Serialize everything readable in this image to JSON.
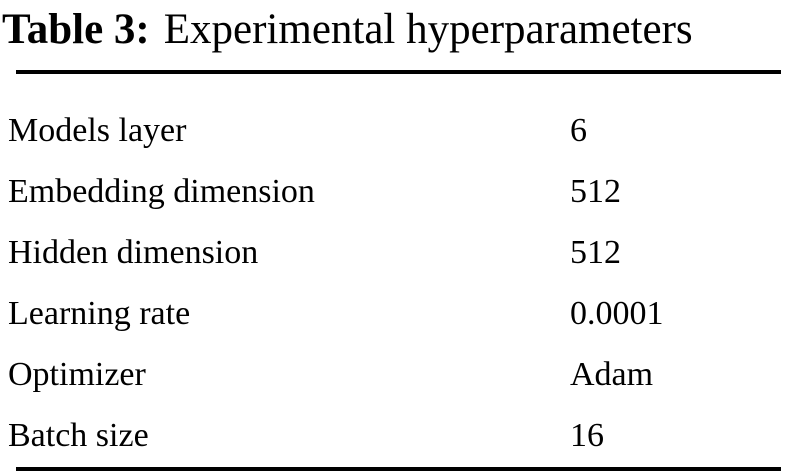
{
  "table": {
    "caption": {
      "label": "Table 3:",
      "title": "Experimental hyperparameters"
    },
    "rows": [
      {
        "parameter": "Models layer",
        "value": "6"
      },
      {
        "parameter": "Embedding dimension",
        "value": "512"
      },
      {
        "parameter": "Hidden dimension",
        "value": "512"
      },
      {
        "parameter": "Learning rate",
        "value": "0.0001"
      },
      {
        "parameter": "Optimizer",
        "value": "Adam"
      },
      {
        "parameter": "Batch size",
        "value": "16"
      }
    ],
    "colors": {
      "text": "#000000",
      "background": "#ffffff",
      "rule": "#000000"
    }
  }
}
